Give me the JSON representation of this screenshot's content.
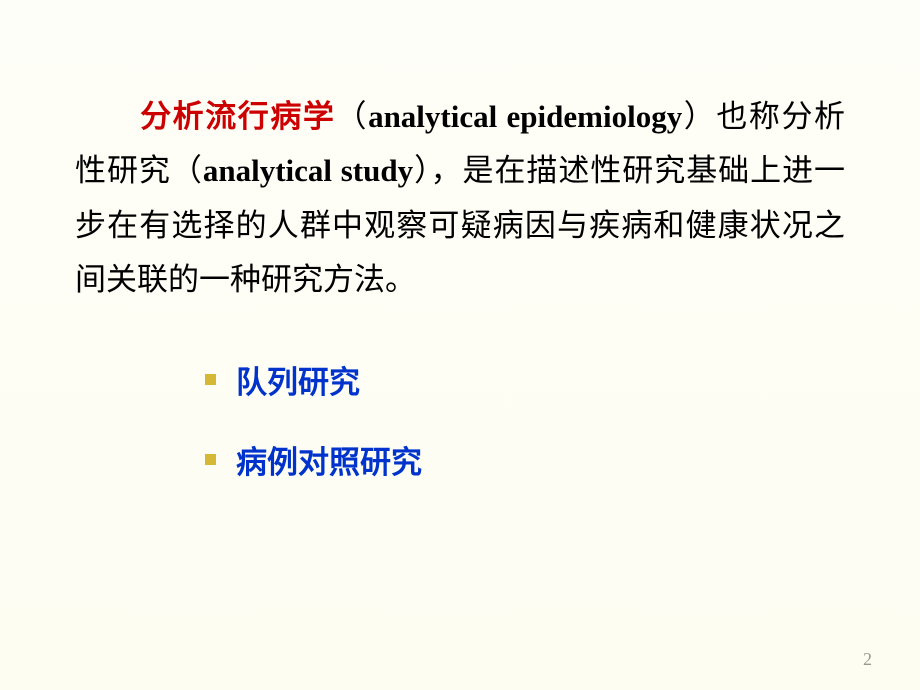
{
  "paragraph": {
    "indent": "　　",
    "term_cn": "分析流行病学",
    "paren_open1": "（",
    "term_en1": "analytical epidemiology",
    "paren_close1": "）",
    "text1": "也称分析性研究",
    "paren_open2": "（",
    "term_en2": "analytical study",
    "paren_close2": "）",
    "text2": "，是在描述性研究基础上进一步在有选择的人群中观察可疑病因与疾病和健康状况之间关联的一种研究方法。"
  },
  "bullets": [
    {
      "label": "队列研究"
    },
    {
      "label": "病例对照研究"
    }
  ],
  "page_number": "2",
  "colors": {
    "term_red": "#cc0000",
    "bullet_text": "#0033cc",
    "bullet_marker": "#d4b836",
    "page_number": "#9a9a8a",
    "background": "#fefef8"
  }
}
